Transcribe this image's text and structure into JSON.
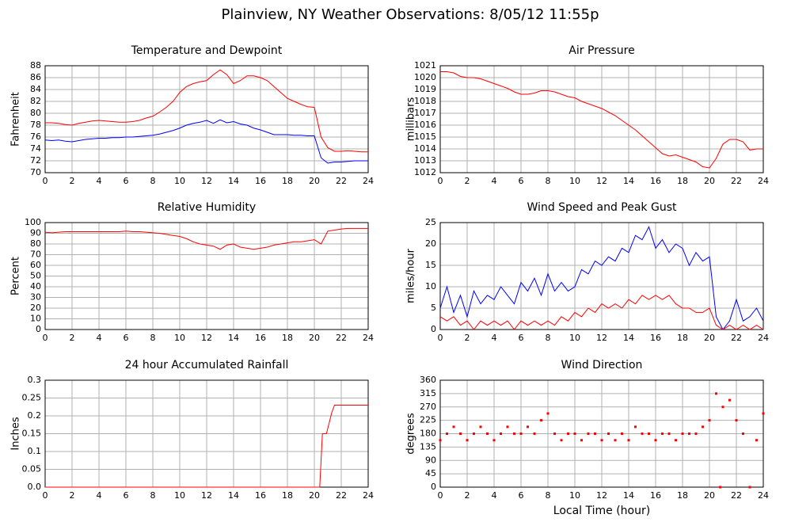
{
  "title": "Plainview, NY Weather Observations: 8/05/12 11:55p",
  "chart_data": [
    {
      "type": "line",
      "title": "Temperature and Dewpoint",
      "ylabel": "Fahrenheit",
      "x": [
        0,
        0.5,
        1,
        1.5,
        2,
        2.5,
        3,
        3.5,
        4,
        4.5,
        5,
        5.5,
        6,
        6.5,
        7,
        7.5,
        8,
        8.5,
        9,
        9.5,
        10,
        10.5,
        11,
        11.5,
        12,
        12.5,
        13,
        13.5,
        14,
        14.5,
        15,
        15.5,
        16,
        16.5,
        17,
        17.5,
        18,
        18.5,
        19,
        19.5,
        20,
        20.5,
        21,
        21.5,
        22,
        22.5,
        23,
        23.5,
        24
      ],
      "series": [
        {
          "color": "#ff0000",
          "values": [
            78.4,
            78.4,
            78.3,
            78.1,
            78.0,
            78.3,
            78.5,
            78.7,
            78.8,
            78.7,
            78.6,
            78.5,
            78.5,
            78.6,
            78.8,
            79.2,
            79.5,
            80.2,
            81,
            82,
            83.5,
            84.5,
            85,
            85.3,
            85.5,
            86.5,
            87.3,
            86.5,
            85,
            85.5,
            86.3,
            86.3,
            86,
            85.5,
            84.5,
            83.5,
            82.5,
            82,
            81.5,
            81.1,
            81,
            76,
            74.2,
            73.6,
            73.6,
            73.7,
            73.6,
            73.5,
            73.5
          ]
        },
        {
          "color": "#0000ff",
          "values": [
            75.5,
            75.4,
            75.5,
            75.3,
            75.2,
            75.4,
            75.6,
            75.7,
            75.8,
            75.8,
            75.9,
            75.9,
            76,
            76,
            76.1,
            76.2,
            76.3,
            76.5,
            76.8,
            77.1,
            77.5,
            78,
            78.3,
            78.5,
            78.8,
            78.3,
            78.9,
            78.4,
            78.6,
            78.2,
            78,
            77.5,
            77.2,
            76.8,
            76.4,
            76.4,
            76.4,
            76.3,
            76.3,
            76.2,
            76.2,
            72.5,
            71.6,
            71.8,
            71.8,
            71.9,
            72,
            72,
            72
          ]
        }
      ],
      "xlim": [
        0,
        24
      ],
      "xticks": [
        0,
        2,
        4,
        6,
        8,
        10,
        12,
        14,
        16,
        18,
        20,
        22,
        24
      ],
      "ylim": [
        70,
        88
      ],
      "yticks": [
        70,
        72,
        74,
        76,
        78,
        80,
        82,
        84,
        86,
        88
      ],
      "grid": true
    },
    {
      "type": "line",
      "title": "Air Pressure",
      "ylabel": "millibars",
      "x": [
        0,
        0.5,
        1,
        1.5,
        2,
        2.5,
        3,
        3.5,
        4,
        4.5,
        5,
        5.5,
        6,
        6.5,
        7,
        7.5,
        8,
        8.5,
        9,
        9.5,
        10,
        10.5,
        11,
        11.5,
        12,
        12.5,
        13,
        13.5,
        14,
        14.5,
        15,
        15.5,
        16,
        16.5,
        17,
        17.5,
        18,
        18.5,
        19,
        19.5,
        20,
        20.5,
        21,
        21.5,
        22,
        22.5,
        23,
        23.5,
        24
      ],
      "series": [
        {
          "color": "#ff0000",
          "values": [
            1020.5,
            1020.5,
            1020.4,
            1020.1,
            1020,
            1020,
            1019.9,
            1019.7,
            1019.5,
            1019.3,
            1019.1,
            1018.8,
            1018.6,
            1018.6,
            1018.7,
            1018.9,
            1018.9,
            1018.8,
            1018.6,
            1018.4,
            1018.3,
            1018,
            1017.8,
            1017.6,
            1017.4,
            1017.1,
            1016.8,
            1016.4,
            1016,
            1015.6,
            1015.1,
            1014.6,
            1014.1,
            1013.6,
            1013.4,
            1013.5,
            1013.3,
            1013.1,
            1012.9,
            1012.5,
            1012.4,
            1013.2,
            1014.4,
            1014.8,
            1014.8,
            1014.6,
            1013.9,
            1014,
            1014
          ]
        }
      ],
      "xlim": [
        0,
        24
      ],
      "xticks": [
        0,
        2,
        4,
        6,
        8,
        10,
        12,
        14,
        16,
        18,
        20,
        22,
        24
      ],
      "ylim": [
        1012,
        1021
      ],
      "yticks": [
        1012,
        1013,
        1014,
        1015,
        1016,
        1017,
        1018,
        1019,
        1020,
        1021
      ],
      "grid": true
    },
    {
      "type": "line",
      "title": "Relative Humidity",
      "ylabel": "Percent",
      "x": [
        0,
        0.5,
        1,
        1.5,
        2,
        2.5,
        3,
        3.5,
        4,
        4.5,
        5,
        5.5,
        6,
        6.5,
        7,
        7.5,
        8,
        8.5,
        9,
        9.5,
        10,
        10.5,
        11,
        11.5,
        12,
        12.5,
        13,
        13.5,
        14,
        14.5,
        15,
        15.5,
        16,
        16.5,
        17,
        17.5,
        18,
        18.5,
        19,
        19.5,
        20,
        20.5,
        21,
        21.5,
        22,
        22.5,
        23,
        23.5,
        24
      ],
      "series": [
        {
          "color": "#ff0000",
          "values": [
            91,
            90.5,
            91,
            91.5,
            91.5,
            91.5,
            91.5,
            91.5,
            91.5,
            91.5,
            91.5,
            91.5,
            92,
            91.5,
            91.5,
            91,
            90.5,
            90,
            89,
            88,
            87,
            85,
            82,
            80,
            79,
            78,
            75,
            79,
            80,
            77,
            76,
            75,
            76,
            77,
            79,
            80,
            81,
            82,
            82,
            83,
            84,
            80,
            92,
            93,
            94,
            94.5,
            94.5,
            94.5,
            94.5
          ]
        }
      ],
      "xlim": [
        0,
        24
      ],
      "xticks": [
        0,
        2,
        4,
        6,
        8,
        10,
        12,
        14,
        16,
        18,
        20,
        22,
        24
      ],
      "ylim": [
        0,
        100
      ],
      "yticks": [
        0,
        10,
        20,
        30,
        40,
        50,
        60,
        70,
        80,
        90,
        100
      ],
      "grid": true
    },
    {
      "type": "line",
      "title": "Wind Speed and Peak Gust",
      "ylabel": "miles/hour",
      "x": [
        0,
        0.5,
        1,
        1.5,
        2,
        2.5,
        3,
        3.5,
        4,
        4.5,
        5,
        5.5,
        6,
        6.5,
        7,
        7.5,
        8,
        8.5,
        9,
        9.5,
        10,
        10.5,
        11,
        11.5,
        12,
        12.5,
        13,
        13.5,
        14,
        14.5,
        15,
        15.5,
        16,
        16.5,
        17,
        17.5,
        18,
        18.5,
        19,
        19.5,
        20,
        20.5,
        21,
        21.5,
        22,
        22.5,
        23,
        23.5,
        24
      ],
      "series": [
        {
          "color": "#0000ff",
          "values": [
            5,
            10,
            4,
            8,
            3,
            9,
            6,
            8,
            7,
            10,
            8,
            6,
            11,
            9,
            12,
            8,
            13,
            9,
            11,
            9,
            10,
            14,
            13,
            16,
            15,
            17,
            16,
            19,
            18,
            22,
            21,
            24,
            19,
            21,
            18,
            20,
            19,
            15,
            18,
            16,
            17,
            3,
            0,
            2,
            7,
            2,
            3,
            5,
            2
          ]
        },
        {
          "color": "#ff0000",
          "values": [
            3,
            2,
            3,
            1,
            2,
            0,
            2,
            1,
            2,
            1,
            2,
            0,
            2,
            1,
            2,
            1,
            2,
            1,
            3,
            2,
            4,
            3,
            5,
            4,
            6,
            5,
            6,
            5,
            7,
            6,
            8,
            7,
            8,
            7,
            8,
            6,
            5,
            5,
            4,
            4,
            5,
            1,
            0,
            1,
            0,
            1,
            0,
            1,
            0
          ]
        }
      ],
      "xlim": [
        0,
        24
      ],
      "xticks": [
        0,
        2,
        4,
        6,
        8,
        10,
        12,
        14,
        16,
        18,
        20,
        22,
        24
      ],
      "ylim": [
        0,
        25
      ],
      "yticks": [
        0,
        5,
        10,
        15,
        20,
        25
      ],
      "grid": true
    },
    {
      "type": "line",
      "title": "24 hour Accumulated Rainfall",
      "ylabel": "Inches",
      "x": [
        0,
        20.4,
        20.6,
        20.9,
        21.3,
        21.5,
        24
      ],
      "series": [
        {
          "color": "#ff0000",
          "values": [
            0,
            0,
            0.15,
            0.15,
            0.21,
            0.23,
            0.23
          ]
        }
      ],
      "xlim": [
        0,
        24
      ],
      "xticks": [
        0,
        2,
        4,
        6,
        8,
        10,
        12,
        14,
        16,
        18,
        20,
        22,
        24
      ],
      "ylim": [
        0,
        0.3
      ],
      "yticks": [
        {
          "value": 0,
          "label": "0.0"
        },
        0.05,
        0.1,
        0.15,
        0.2,
        0.25,
        0.3
      ],
      "grid": true
    },
    {
      "type": "scatter",
      "title": "Wind Direction",
      "ylabel": "degrees",
      "xlabel": "Local Time (hour)",
      "x": [
        0,
        0.5,
        1,
        1.5,
        2,
        2.5,
        3,
        3.5,
        4,
        4.5,
        5,
        5.5,
        6,
        6.5,
        7,
        7.5,
        8,
        8.5,
        9,
        9.5,
        10,
        10.5,
        11,
        11.5,
        12,
        12.5,
        13,
        13.5,
        14,
        14.5,
        15,
        15.5,
        16,
        16.5,
        17,
        17.5,
        18,
        18.5,
        19,
        19.5,
        20,
        20.5,
        20.8,
        21,
        21.5,
        22,
        22.5,
        23,
        23.5,
        24
      ],
      "series": [
        {
          "color": "#ff0000",
          "values": [
            158,
            180,
            203,
            180,
            158,
            180,
            203,
            180,
            158,
            180,
            203,
            180,
            180,
            203,
            180,
            225,
            248,
            180,
            158,
            180,
            180,
            158,
            180,
            180,
            158,
            180,
            158,
            180,
            158,
            203,
            180,
            180,
            158,
            180,
            180,
            158,
            180,
            180,
            180,
            203,
            225,
            315,
            0,
            270,
            293,
            225,
            180,
            0,
            158,
            248
          ]
        }
      ],
      "xlim": [
        0,
        24
      ],
      "xticks": [
        0,
        2,
        4,
        6,
        8,
        10,
        12,
        14,
        16,
        18,
        20,
        22,
        24
      ],
      "ylim": [
        0,
        360
      ],
      "yticks": [
        0,
        45,
        90,
        135,
        180,
        225,
        270,
        315,
        360
      ],
      "grid": true
    }
  ]
}
